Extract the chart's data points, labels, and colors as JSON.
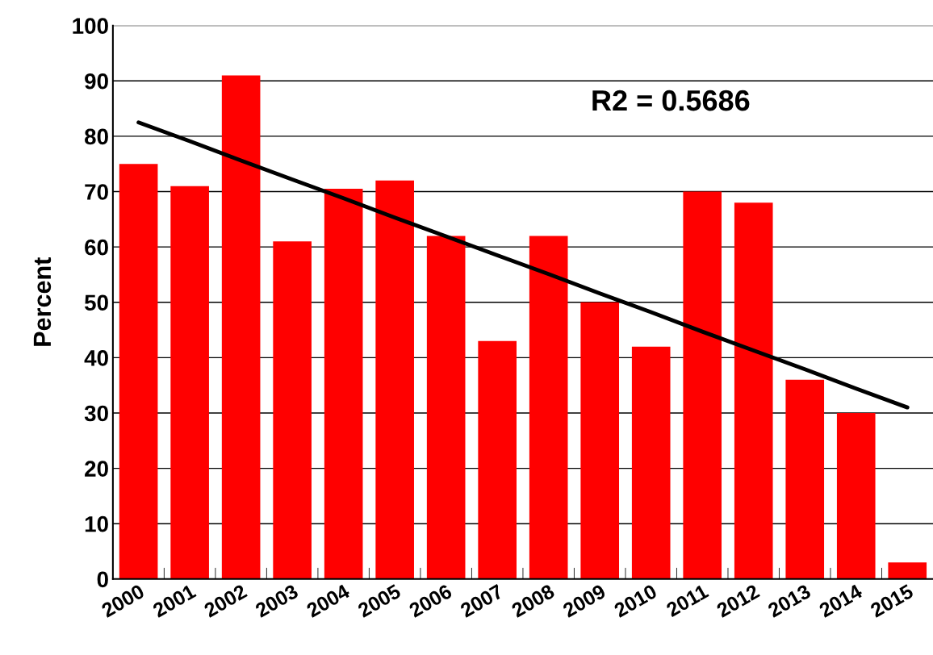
{
  "chart_data": {
    "type": "bar",
    "ylabel": "Percent",
    "categories": [
      "2000",
      "2001",
      "2002",
      "2003",
      "2004",
      "2005",
      "2006",
      "2007",
      "2008",
      "2009",
      "2010",
      "2011",
      "2012",
      "2013",
      "2014",
      "2015"
    ],
    "series": [
      {
        "color": "#ff0000",
        "values": [
          75,
          71,
          91,
          61,
          70.5,
          72,
          62,
          43,
          62,
          50,
          42,
          70,
          68,
          36,
          30,
          3
        ]
      },
      {
        "type": "line",
        "color": "#000000",
        "values": [
          82.5,
          79.1,
          75.6,
          72.2,
          68.8,
          65.3,
          61.9,
          58.5,
          55.1,
          51.6,
          48.2,
          44.7,
          41.3,
          37.9,
          34.4,
          31.0
        ]
      }
    ],
    "ylim": [
      0,
      100
    ],
    "yticks": [
      0,
      10,
      20,
      30,
      40,
      50,
      60,
      70,
      80,
      90,
      100
    ],
    "grid": "y",
    "annotations": [
      "R2 = 0.5686"
    ]
  }
}
